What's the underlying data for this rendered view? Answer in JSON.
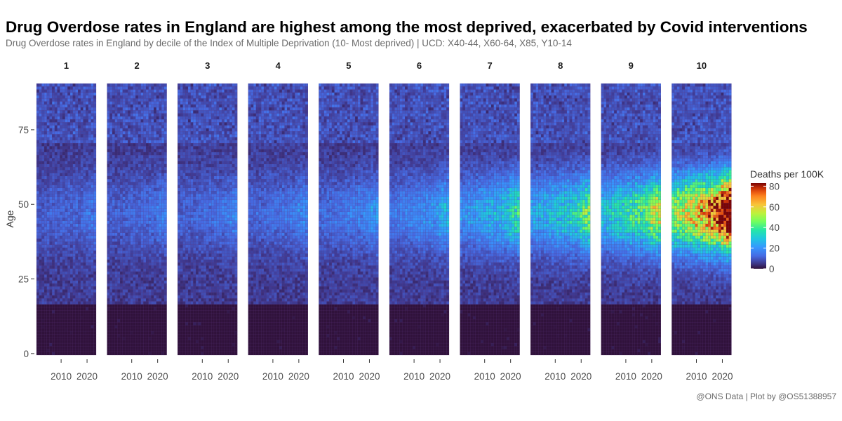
{
  "chart": {
    "title": "Drug Overdose rates in England are highest among the most deprived, exacerbated by Covid interventions",
    "subtitle": "Drug Overdose rates in England by decile of the Index of Multiple Deprivation (10- Most deprived) | UCD: X40-44, X60-64, X85, Y10-14",
    "caption": "@ONS Data | Plot by @OS51388957"
  },
  "chart_data": {
    "type": "heatmap",
    "facet_variable": "decile",
    "facets": [
      "1",
      "2",
      "3",
      "4",
      "5",
      "6",
      "7",
      "8",
      "9",
      "10"
    ],
    "ylabel": "Age",
    "x_range": [
      2001,
      2023
    ],
    "x_ticks": [
      {
        "value": 2010,
        "label": "2010"
      },
      {
        "value": 2020,
        "label": "2020"
      }
    ],
    "y_range": [
      0,
      90
    ],
    "y_ticks": [
      {
        "value": 0,
        "label": "0"
      },
      {
        "value": 25,
        "label": "25"
      },
      {
        "value": 50,
        "label": "50"
      },
      {
        "value": 75,
        "label": "75"
      }
    ],
    "legend": {
      "title": "Deaths per 100K",
      "placement": "right",
      "min": 0,
      "max": 83,
      "ticks": [
        {
          "value": 0,
          "label": "0"
        },
        {
          "value": 20,
          "label": "20"
        },
        {
          "value": 40,
          "label": "40"
        },
        {
          "value": 60,
          "label": "60"
        },
        {
          "value": 80,
          "label": "80"
        }
      ],
      "colormap": "turbo"
    },
    "approx_peak_rate_by_decile": [
      8,
      9,
      10,
      11,
      13,
      17,
      26,
      32,
      42,
      80
    ],
    "approx_peak_age": 47,
    "min_age_with_deaths": 17,
    "grid": false
  }
}
